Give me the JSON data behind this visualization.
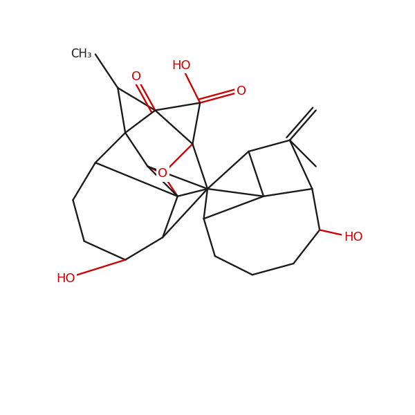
{
  "bg_color": "#ffffff",
  "bond_color": "#1a1a1a",
  "heteroatom_color": "#cc0000",
  "line_width": 1.7,
  "font_size": 13,
  "figsize": [
    6.0,
    6.0
  ],
  "dpi": 100,
  "xlim": [
    -0.5,
    10.5
  ],
  "ylim": [
    -0.5,
    10.5
  ]
}
